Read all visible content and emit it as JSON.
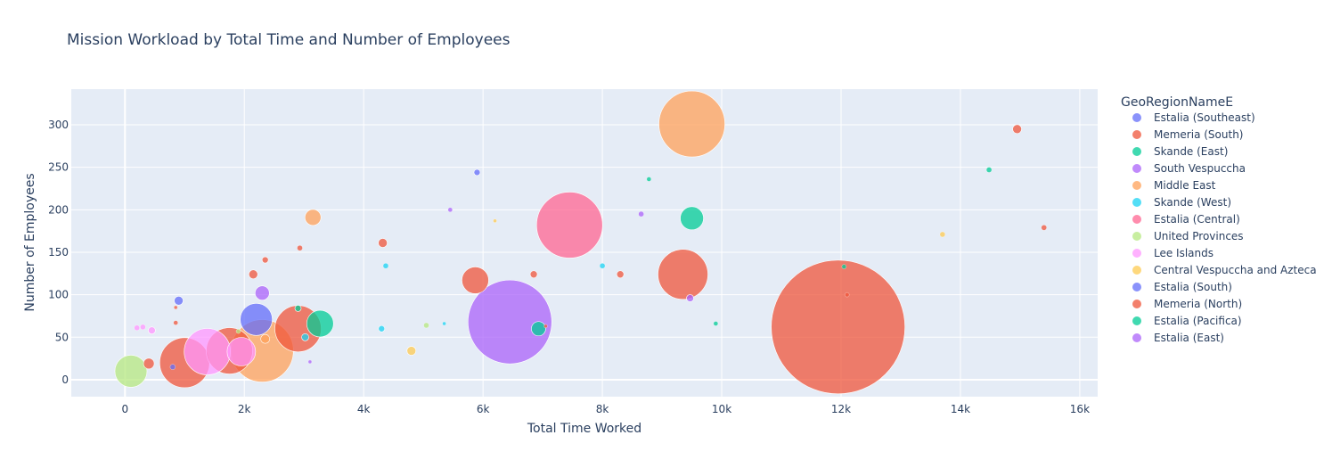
{
  "chart_data": {
    "type": "scatter",
    "title": "Mission Workload by Total Time and Number of Employees",
    "xlabel": "Total Time Worked",
    "ylabel": "Number of Employees",
    "xlim": [
      -900,
      16300
    ],
    "ylim": [
      -20,
      342
    ],
    "x_ticks": [
      0,
      2000,
      4000,
      6000,
      8000,
      10000,
      12000,
      14000,
      16000
    ],
    "x_tick_labels": [
      "0",
      "2k",
      "4k",
      "6k",
      "8k",
      "10k",
      "12k",
      "14k",
      "16k"
    ],
    "y_ticks": [
      0,
      50,
      100,
      150,
      200,
      250,
      300
    ],
    "y_tick_labels": [
      "0",
      "50",
      "100",
      "150",
      "200",
      "250",
      "300"
    ],
    "grid": true,
    "legend_title": "GeoRegionNameE",
    "legend_position": "right",
    "series": [
      {
        "name": "Estalia (Southeast)",
        "color": "#636efa",
        "points": [
          [
            2200,
            71,
            18
          ],
          [
            900,
            93,
            5
          ],
          [
            5900,
            244,
            3.5
          ],
          [
            800,
            15,
            3
          ]
        ]
      },
      {
        "name": "Memeria (South)",
        "color": "#EF553B",
        "points": [
          [
            11950,
            62,
            75
          ],
          [
            1000,
            20,
            28
          ],
          [
            1750,
            34,
            26
          ],
          [
            2900,
            60,
            26
          ],
          [
            9350,
            124,
            28
          ],
          [
            5870,
            117,
            15
          ],
          [
            14950,
            295,
            5
          ],
          [
            4320,
            161,
            5
          ],
          [
            400,
            19,
            6
          ],
          [
            2150,
            124,
            5
          ],
          [
            2350,
            141,
            3.5
          ],
          [
            2930,
            155,
            3
          ],
          [
            6850,
            124,
            4
          ],
          [
            8300,
            124,
            4
          ],
          [
            15400,
            179,
            3
          ],
          [
            12100,
            100,
            2.5
          ],
          [
            850,
            67,
            2.5
          ],
          [
            850,
            85,
            2
          ],
          [
            7050,
            63,
            2
          ]
        ]
      },
      {
        "name": "Skande (East)",
        "color": "#00cc96",
        "points": [
          [
            3270,
            66,
            15
          ],
          [
            9500,
            190,
            13
          ],
          [
            6930,
            60,
            8
          ],
          [
            2900,
            84,
            3.5
          ],
          [
            14480,
            247,
            3
          ],
          [
            8780,
            236,
            2.5
          ],
          [
            12050,
            133,
            2.5
          ],
          [
            9900,
            66,
            2.5
          ]
        ]
      },
      {
        "name": "South Vespuccha",
        "color": "#ab63fa",
        "points": [
          [
            6450,
            68,
            47
          ],
          [
            2300,
            102,
            8
          ],
          [
            9470,
            96,
            4
          ],
          [
            8650,
            195,
            3
          ],
          [
            5450,
            200,
            2.5
          ],
          [
            3100,
            21,
            2
          ]
        ]
      },
      {
        "name": "Middle East",
        "color": "#FFA15A",
        "points": [
          [
            9500,
            301,
            37
          ],
          [
            2300,
            34,
            35
          ],
          [
            3150,
            191,
            9
          ],
          [
            2350,
            48,
            5
          ]
        ]
      },
      {
        "name": "Skande (West)",
        "color": "#19d3f3",
        "points": [
          [
            3020,
            50,
            4
          ],
          [
            4300,
            60,
            3.5
          ],
          [
            4370,
            134,
            3
          ],
          [
            8000,
            134,
            3
          ],
          [
            5350,
            66,
            2
          ]
        ]
      },
      {
        "name": "Estalia (Central)",
        "color": "#FF6692",
        "points": [
          [
            7450,
            182,
            37
          ]
        ]
      },
      {
        "name": "United Provinces",
        "color": "#B6E880",
        "points": [
          [
            100,
            10,
            18
          ],
          [
            5050,
            64,
            3
          ],
          [
            1900,
            57,
            2.5
          ]
        ]
      },
      {
        "name": "Lee Islands",
        "color": "#FF97FF",
        "points": [
          [
            1380,
            33,
            26
          ],
          [
            1950,
            33,
            16
          ],
          [
            450,
            58,
            4
          ],
          [
            300,
            62,
            3
          ],
          [
            200,
            61,
            3
          ]
        ]
      },
      {
        "name": "Central Vespuccha and Azteca",
        "color": "#FECB52",
        "points": [
          [
            4800,
            34,
            5
          ],
          [
            13700,
            171,
            3
          ],
          [
            6200,
            187,
            2
          ]
        ]
      },
      {
        "name": "Estalia (South)",
        "color": "#636efa",
        "points": []
      },
      {
        "name": "Memeria (North)",
        "color": "#EF553B",
        "points": []
      },
      {
        "name": "Estalia (Pacifica)",
        "color": "#00cc96",
        "points": []
      },
      {
        "name": "Estalia (East)",
        "color": "#ab63fa",
        "points": []
      }
    ]
  }
}
